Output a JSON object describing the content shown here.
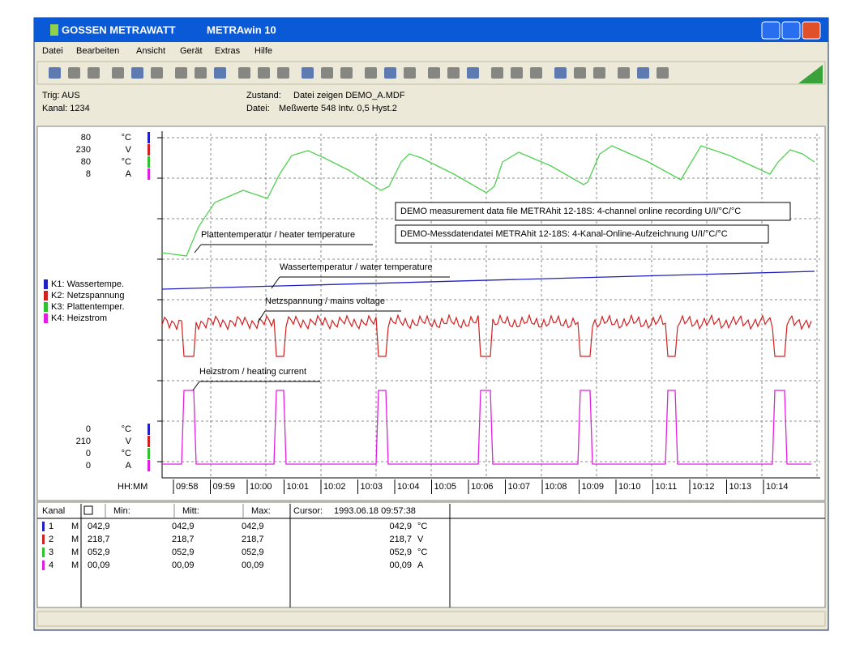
{
  "window": {
    "brand": "GOSSEN METRAWATT",
    "title": "METRAwin 10"
  },
  "menu": [
    "Datei",
    "Bearbeiten",
    "Ansicht",
    "Gerät",
    "Extras",
    "Hilfe"
  ],
  "info": {
    "trig": "Trig: AUS",
    "kanal": "Kanal: 1234",
    "zustand_label": "Zustand:",
    "zustand": "Datei zeigen DEMO_A.MDF",
    "datei_label": "Datei:",
    "datei": "Meßwerte 548  Intv. 0,5  Hyst.2"
  },
  "axis_top": [
    {
      "value": "80",
      "unit": "°C"
    },
    {
      "value": "230",
      "unit": "V"
    },
    {
      "value": "80",
      "unit": "°C"
    },
    {
      "value": "8",
      "unit": "A"
    }
  ],
  "axis_bottom": [
    {
      "value": "0",
      "unit": "°C"
    },
    {
      "value": "210",
      "unit": "V"
    },
    {
      "value": "0",
      "unit": "°C"
    },
    {
      "value": "0",
      "unit": "A"
    }
  ],
  "legend": [
    "K1: Wassertempe.",
    "K2: Netzspannung",
    "K3: Plattentemper.",
    "K4: Heizstrom"
  ],
  "boxes": [
    "DEMO measurement data file METRAhit 12-18S: 4-channel online recording U/I/°C/°C",
    "DEMO-Messdatendatei METRAhit 12-18S: 4-Kanal-Online-Aufzeichnung U/I/°C/°C"
  ],
  "annotations": [
    "Plattentemperatur / heater temperature",
    "Wassertemperatur / water temperature",
    "Netzspannung / mains voltage",
    "Heizstrom / heating current"
  ],
  "time_axis": {
    "label": "HH:MM",
    "ticks": [
      "09:58",
      "09:59",
      "10:00",
      "10:01",
      "10:02",
      "10:03",
      "10:04",
      "10:05",
      "10:06",
      "10:07",
      "10:08",
      "10:09",
      "10:10",
      "10:11",
      "10:12",
      "10:13",
      "10:14"
    ]
  },
  "table": {
    "headers": [
      "Kanal",
      "Min:",
      "Mitt:",
      "Max:",
      "Cursor:"
    ],
    "cursor": "1993.06.18 09:57:38",
    "rows": [
      [
        "1",
        "M",
        "042,9",
        "042,9",
        "042,9",
        "042,9",
        "°C"
      ],
      [
        "2",
        "M",
        "218,7",
        "218,7",
        "218,7",
        "218,7",
        "V"
      ],
      [
        "3",
        "M",
        "052,9",
        "052,9",
        "052,9",
        "052,9",
        "°C"
      ],
      [
        "4",
        "M",
        "00,09",
        "00,09",
        "00,09",
        "00,09",
        "A"
      ]
    ]
  }
}
